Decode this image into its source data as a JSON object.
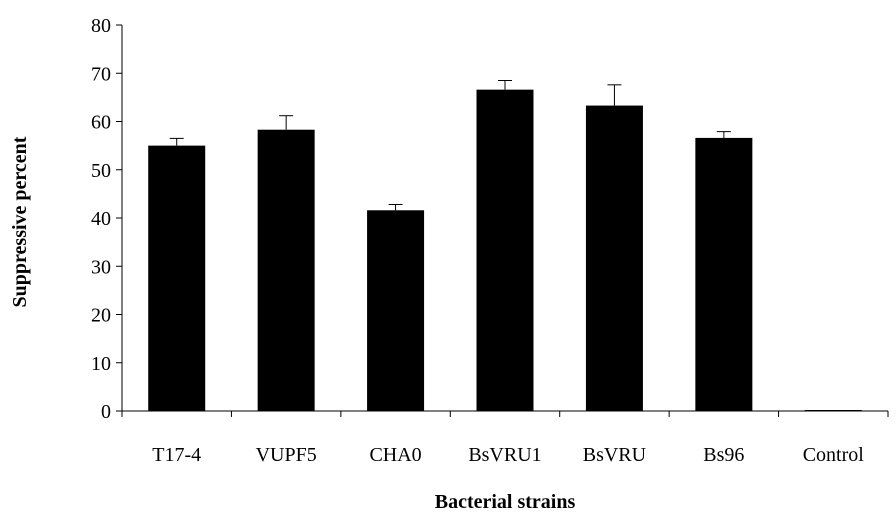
{
  "chart_data": {
    "type": "bar",
    "title": "",
    "xlabel": "Bacterial strains",
    "ylabel": "Suppressive percent",
    "categories": [
      "T17-4",
      "VUPF5",
      "CHA0",
      "BsVRU1",
      "BsVRU",
      "Bs96",
      "Control"
    ],
    "values": [
      55.0,
      58.3,
      41.6,
      66.6,
      63.3,
      56.6,
      0
    ],
    "errors": [
      1.5,
      2.9,
      1.2,
      1.9,
      4.3,
      1.3,
      0
    ],
    "ylim": [
      0,
      80
    ],
    "yticks": [
      0,
      10,
      20,
      30,
      40,
      50,
      60,
      70,
      80
    ],
    "grid": false,
    "legend": "none",
    "bar_color": "#000000"
  }
}
